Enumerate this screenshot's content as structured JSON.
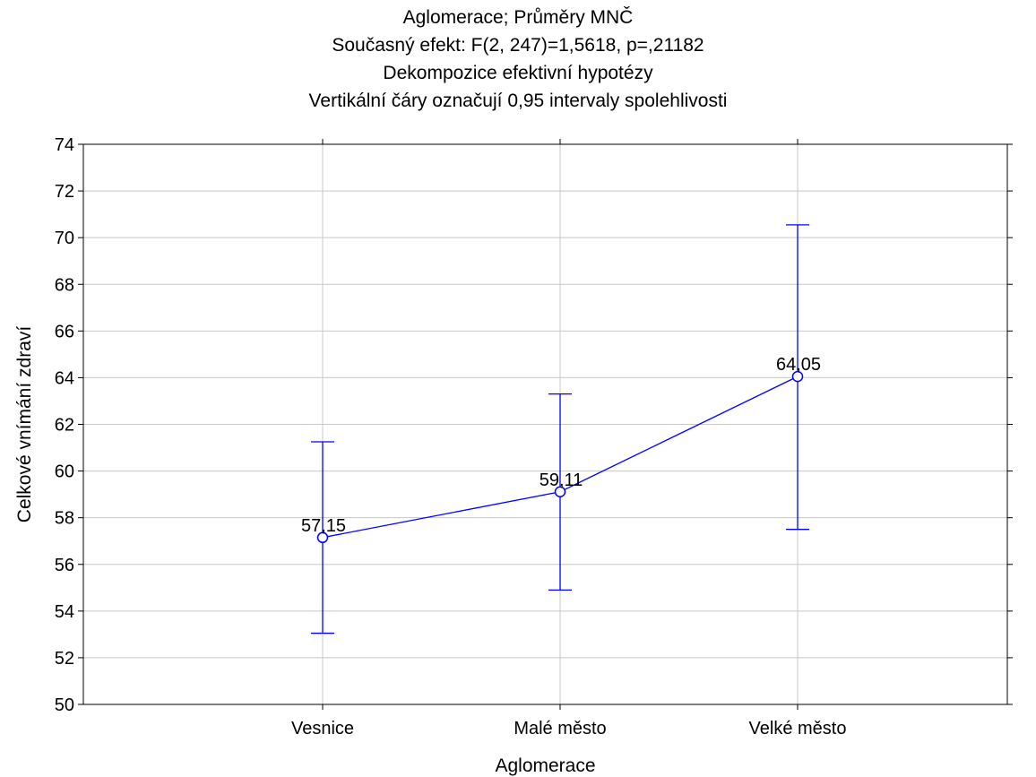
{
  "chart_data": {
    "type": "line",
    "title": "Aglomerace; Průměry MNČ",
    "subtitles": [
      "Současný efekt: F(2, 247)=1,5618, p=,21182",
      "Dekompozice efektivní hypotézy",
      "Vertikální čáry označují 0,95 intervaly spolehlivosti"
    ],
    "xlabel": "Aglomerace",
    "ylabel": "Celkové vnímání zdraví",
    "categories": [
      "Vesnice",
      "Malé město",
      "Velké město"
    ],
    "series": [
      {
        "values": [
          57.15,
          59.11,
          64.05
        ],
        "value_labels": [
          "57,15",
          "59,11",
          "64,05"
        ],
        "ci_lower": [
          53.05,
          54.9,
          57.5
        ],
        "ci_upper": [
          61.25,
          63.3,
          70.55
        ]
      }
    ],
    "ylim": [
      50,
      74
    ],
    "yticks": [
      50,
      52,
      54,
      56,
      58,
      60,
      62,
      64,
      66,
      68,
      70,
      72,
      74
    ],
    "grid": true,
    "series_color": "#0000ff",
    "grid_color": "#c8c8c8"
  }
}
